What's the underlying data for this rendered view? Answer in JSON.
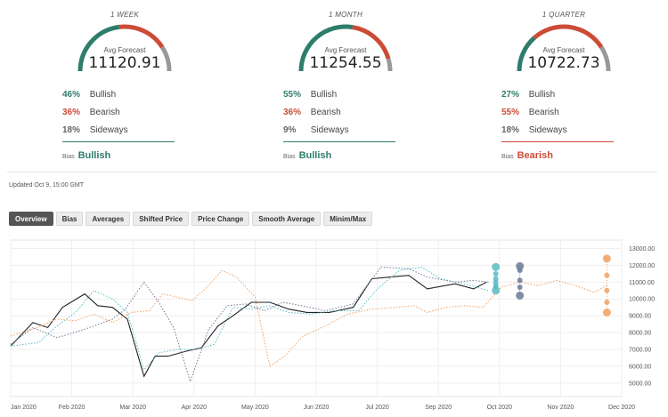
{
  "forecasts": [
    {
      "period": "1 WEEK",
      "avg_label": "Avg Forecast",
      "avg_value": "11120.91",
      "bullish_pct": "46%",
      "bullish_label": "Bullish",
      "bearish_pct": "36%",
      "bearish_label": "Bearish",
      "sideways_pct": "18%",
      "sideways_label": "Sideways",
      "bias_label": "Bias",
      "bias_value": "Bullish"
    },
    {
      "period": "1 MONTH",
      "avg_label": "Avg Forecast",
      "avg_value": "11254.55",
      "bullish_pct": "55%",
      "bullish_label": "Bullish",
      "bearish_pct": "36%",
      "bearish_label": "Bearish",
      "sideways_pct": "9%",
      "sideways_label": "Sideways",
      "bias_label": "Bias",
      "bias_value": "Bullish"
    },
    {
      "period": "1 QUARTER",
      "avg_label": "Avg Forecast",
      "avg_value": "10722.73",
      "bullish_pct": "27%",
      "bullish_label": "Bullish",
      "bearish_pct": "55%",
      "bearish_label": "Bearish",
      "sideways_pct": "18%",
      "sideways_label": "Sideways",
      "bias_label": "Bias",
      "bias_value": "Bearish"
    }
  ],
  "updated": "Updated Oct 9, 15:00 GMT",
  "tabs": [
    "Overview",
    "Bias",
    "Averages",
    "Shifted Price",
    "Price Change",
    "Smooth Average",
    "Minim/Max"
  ],
  "active_tab": "Overview",
  "colors": {
    "bullish": "#2e7d6b",
    "bearish": "#cc4b37",
    "sideways": "#999999"
  },
  "chart_data": {
    "type": "line",
    "x_ticks": [
      "Jan 2020",
      "Feb 2020",
      "Mar 2020",
      "Apr 2020",
      "May 2020",
      "Jun 2020",
      "Jul 2020",
      "Sep 2020",
      "Oct 2020",
      "Nov 2020",
      "Dec 2020"
    ],
    "y_ticks": [
      "13000.00",
      "12000.00",
      "11000.00",
      "10000.00",
      "9000.00",
      "8000.00",
      "7000.00",
      "6000.00",
      "5000.00"
    ],
    "ylim": [
      4200,
      13500
    ],
    "xlim": [
      0,
      330
    ],
    "grid": true,
    "series": [
      {
        "color": "#222222",
        "style": "solid",
        "points": [
          [
            0,
            7200
          ],
          [
            12,
            8600
          ],
          [
            20,
            8300
          ],
          [
            28,
            9500
          ],
          [
            40,
            10300
          ],
          [
            47,
            9600
          ],
          [
            55,
            9500
          ],
          [
            63,
            8800
          ],
          [
            72,
            5400
          ],
          [
            78,
            6600
          ],
          [
            85,
            6600
          ],
          [
            95,
            6900
          ],
          [
            103,
            7100
          ],
          [
            112,
            8400
          ],
          [
            120,
            9000
          ],
          [
            130,
            9800
          ],
          [
            140,
            9800
          ],
          [
            150,
            9400
          ],
          [
            160,
            9200
          ],
          [
            172,
            9200
          ],
          [
            185,
            9500
          ],
          [
            195,
            11200
          ],
          [
            205,
            11300
          ],
          [
            215,
            11400
          ],
          [
            225,
            10600
          ],
          [
            235,
            10800
          ],
          [
            240,
            10900
          ],
          [
            250,
            10600
          ],
          [
            257,
            11000
          ]
        ]
      },
      {
        "color": "#5bbcc4",
        "style": "dotted",
        "points": [
          [
            0,
            7200
          ],
          [
            15,
            7400
          ],
          [
            25,
            8400
          ],
          [
            35,
            9200
          ],
          [
            45,
            10500
          ],
          [
            55,
            10000
          ],
          [
            63,
            9200
          ],
          [
            72,
            5800
          ],
          [
            80,
            6800
          ],
          [
            90,
            7000
          ],
          [
            100,
            7000
          ],
          [
            110,
            7300
          ],
          [
            120,
            9500
          ],
          [
            130,
            9400
          ],
          [
            140,
            9600
          ],
          [
            150,
            9200
          ],
          [
            162,
            9100
          ],
          [
            175,
            9300
          ],
          [
            188,
            9300
          ],
          [
            198,
            10600
          ],
          [
            210,
            11700
          ],
          [
            222,
            11900
          ],
          [
            232,
            11200
          ],
          [
            245,
            10900
          ],
          [
            258,
            10500
          ]
        ]
      },
      {
        "color": "#6a7a96",
        "style": "dotted",
        "points": [
          [
            0,
            7300
          ],
          [
            12,
            8300
          ],
          [
            25,
            7700
          ],
          [
            40,
            8200
          ],
          [
            55,
            8800
          ],
          [
            62,
            9400
          ],
          [
            72,
            11000
          ],
          [
            80,
            9800
          ],
          [
            88,
            8300
          ],
          [
            97,
            5100
          ],
          [
            107,
            8200
          ],
          [
            117,
            9600
          ],
          [
            127,
            9700
          ],
          [
            137,
            9300
          ],
          [
            147,
            9800
          ],
          [
            157,
            9600
          ],
          [
            170,
            9300
          ],
          [
            185,
            9700
          ],
          [
            200,
            11900
          ],
          [
            215,
            11800
          ],
          [
            225,
            11300
          ],
          [
            240,
            11000
          ],
          [
            250,
            11100
          ],
          [
            258,
            11000
          ]
        ]
      },
      {
        "color": "#f0a060",
        "style": "dotted",
        "points": [
          [
            0,
            7800
          ],
          [
            12,
            8200
          ],
          [
            25,
            8800
          ],
          [
            35,
            8700
          ],
          [
            45,
            9100
          ],
          [
            55,
            8600
          ],
          [
            65,
            9200
          ],
          [
            75,
            9300
          ],
          [
            82,
            10300
          ],
          [
            90,
            10100
          ],
          [
            98,
            9900
          ],
          [
            106,
            10700
          ],
          [
            114,
            11700
          ],
          [
            122,
            11300
          ],
          [
            132,
            10100
          ],
          [
            140,
            6000
          ],
          [
            148,
            6600
          ],
          [
            158,
            7800
          ],
          [
            170,
            8400
          ],
          [
            182,
            9100
          ],
          [
            195,
            9400
          ],
          [
            208,
            9500
          ],
          [
            218,
            9600
          ],
          [
            225,
            9200
          ],
          [
            235,
            9500
          ],
          [
            245,
            9600
          ],
          [
            255,
            9500
          ],
          [
            265,
            10700
          ],
          [
            275,
            11000
          ],
          [
            285,
            10800
          ],
          [
            295,
            11100
          ],
          [
            305,
            10800
          ],
          [
            315,
            10400
          ],
          [
            322,
            10800
          ]
        ]
      }
    ],
    "scatter_groups": [
      {
        "color": "#5bbcc4",
        "x": 262,
        "values": [
          11900,
          11500,
          11200,
          11000,
          10800,
          10700,
          10500
        ]
      },
      {
        "color": "#6a7a96",
        "x": 275,
        "values": [
          11950,
          11700,
          11100,
          10700,
          10200
        ]
      },
      {
        "color": "#f0a060",
        "x": 322,
        "values": [
          12400,
          11400,
          10500,
          9800,
          9200
        ]
      }
    ]
  }
}
